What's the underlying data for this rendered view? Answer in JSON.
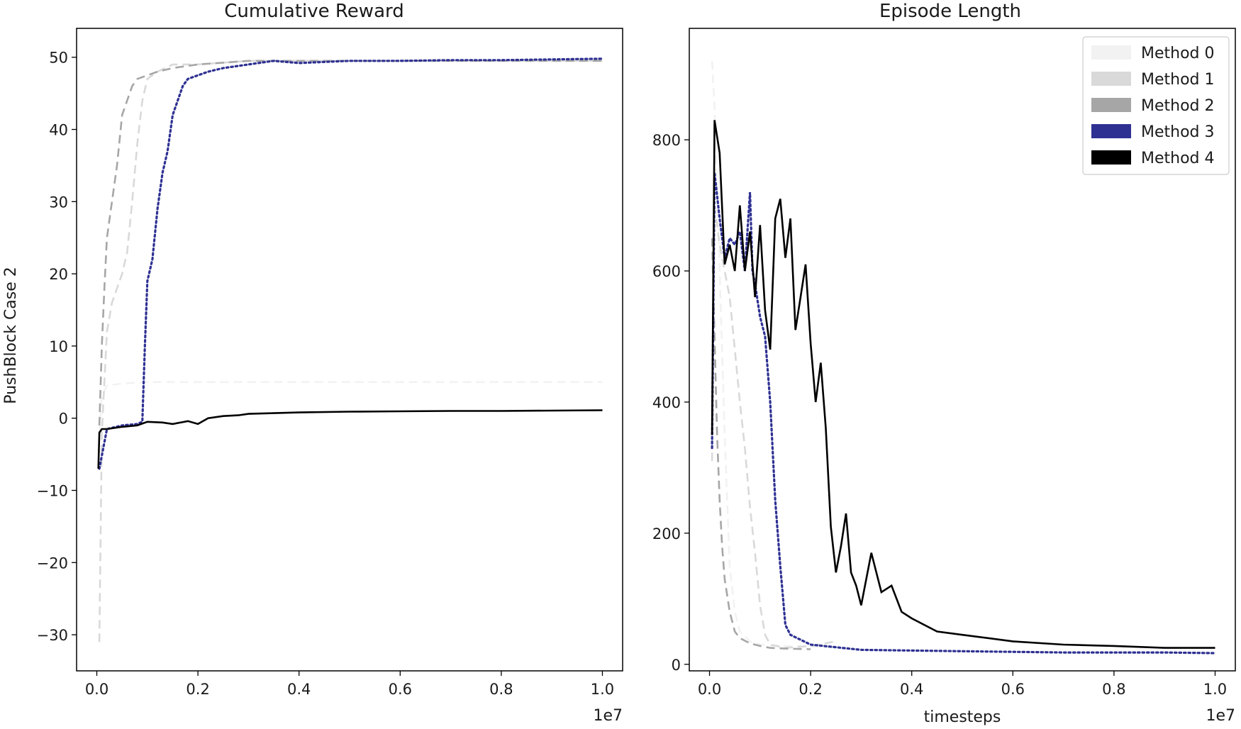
{
  "chart_data": [
    {
      "type": "line",
      "title": "Cumulative Reward",
      "xlabel": "",
      "ylabel": "PushBlock Case 2",
      "x_multiplier_label": "1e7",
      "xlim": [
        -0.04,
        1.04
      ],
      "ylim": [
        -35,
        54
      ],
      "xticks": [
        0.0,
        0.2,
        0.4,
        0.6,
        0.8,
        1.0
      ],
      "xtick_labels": [
        "0.0",
        "0.2",
        "0.4",
        "0.6",
        "0.8",
        "1.0"
      ],
      "yticks": [
        -30,
        -20,
        -10,
        0,
        10,
        20,
        30,
        40,
        50
      ],
      "ytick_labels": [
        "−30",
        "−20",
        "−10",
        "0",
        "10",
        "20",
        "30",
        "40",
        "50"
      ],
      "grid": false,
      "series": [
        {
          "name": "Method 0",
          "color": "#f2f2f2",
          "style": "dashed",
          "x": [
            0.005,
            0.01,
            0.02,
            0.05,
            0.1,
            0.2,
            0.4,
            0.6,
            0.8,
            1.0
          ],
          "y": [
            -2,
            3,
            4.5,
            4.8,
            5,
            5,
            5,
            5,
            5,
            5
          ]
        },
        {
          "name": "Method 1",
          "color": "#d9d9d9",
          "style": "dashed",
          "x": [
            0.005,
            0.01,
            0.015,
            0.02,
            0.03,
            0.04,
            0.05,
            0.06,
            0.07,
            0.08,
            0.09,
            0.1,
            0.12,
            0.15,
            0.2,
            0.3,
            0.4,
            0.6,
            0.8,
            1.0
          ],
          "y": [
            -31,
            -2,
            5,
            12,
            16,
            18,
            20,
            23,
            30,
            38,
            44,
            47,
            48,
            49,
            49,
            49.5,
            49.5,
            49.5,
            49.5,
            49.5
          ]
        },
        {
          "name": "Method 2",
          "color": "#a6a6a6",
          "style": "dashed",
          "x": [
            0.005,
            0.01,
            0.015,
            0.02,
            0.03,
            0.04,
            0.05,
            0.06,
            0.07,
            0.08,
            0.1,
            0.12,
            0.15,
            0.2,
            0.3,
            0.4,
            0.6,
            0.8,
            1.0
          ],
          "y": [
            -1,
            10,
            18,
            25,
            30,
            35,
            42,
            44,
            46,
            47,
            47.5,
            48,
            48.5,
            49,
            49.5,
            49.5,
            49.5,
            49.5,
            49.5
          ]
        },
        {
          "name": "Method 3",
          "color": "#2e3192",
          "style": "dotted",
          "x": [
            0.005,
            0.02,
            0.05,
            0.08,
            0.09,
            0.095,
            0.1,
            0.11,
            0.12,
            0.13,
            0.14,
            0.15,
            0.16,
            0.17,
            0.18,
            0.2,
            0.22,
            0.25,
            0.3,
            0.35,
            0.4,
            0.5,
            0.6,
            0.7,
            0.8,
            0.9,
            1.0
          ],
          "y": [
            -7,
            -1.5,
            -1,
            -0.8,
            -0.5,
            10,
            19,
            22,
            29,
            34,
            37,
            42,
            44,
            46,
            47,
            47.5,
            48,
            48.5,
            49,
            49.5,
            49.2,
            49.5,
            49.5,
            49.6,
            49.6,
            49.7,
            49.8
          ]
        },
        {
          "name": "Method 4",
          "color": "#000000",
          "style": "solid",
          "x": [
            0.003,
            0.005,
            0.01,
            0.02,
            0.05,
            0.08,
            0.1,
            0.13,
            0.15,
            0.18,
            0.2,
            0.22,
            0.25,
            0.28,
            0.3,
            0.35,
            0.4,
            0.5,
            0.6,
            0.7,
            0.8,
            0.9,
            1.0
          ],
          "y": [
            -7,
            -2,
            -1.5,
            -1.5,
            -1.2,
            -1,
            -0.5,
            -0.6,
            -0.8,
            -0.4,
            -0.8,
            0,
            0.3,
            0.4,
            0.6,
            0.7,
            0.8,
            0.9,
            0.95,
            1.0,
            1.0,
            1.05,
            1.1
          ]
        }
      ]
    },
    {
      "type": "line",
      "title": "Episode Length",
      "xlabel": "timesteps",
      "ylabel": "",
      "x_multiplier_label": "1e7",
      "xlim": [
        -0.04,
        1.04
      ],
      "ylim": [
        -10,
        970
      ],
      "xticks": [
        0.0,
        0.2,
        0.4,
        0.6,
        0.8,
        1.0
      ],
      "xtick_labels": [
        "0.0",
        "0.2",
        "0.4",
        "0.6",
        "0.8",
        "1.0"
      ],
      "yticks": [
        0,
        200,
        400,
        600,
        800
      ],
      "ytick_labels": [
        "0",
        "200",
        "400",
        "600",
        "800"
      ],
      "grid": false,
      "legend_position": "top-right",
      "series": [
        {
          "name": "Method 0",
          "color": "#f2f2f2",
          "style": "dashed",
          "x": [
            0.005,
            0.01,
            0.02,
            0.03,
            0.04,
            0.05,
            0.06,
            0.08,
            0.1,
            0.15,
            0.2,
            0.25
          ],
          "y": [
            920,
            850,
            600,
            350,
            150,
            80,
            50,
            35,
            30,
            28,
            27,
            26
          ]
        },
        {
          "name": "Method 1",
          "color": "#d9d9d9",
          "style": "dashed",
          "x": [
            0.005,
            0.01,
            0.02,
            0.03,
            0.04,
            0.05,
            0.06,
            0.07,
            0.08,
            0.09,
            0.1,
            0.11,
            0.12,
            0.15,
            0.2,
            0.25
          ],
          "y": [
            310,
            700,
            640,
            600,
            560,
            480,
            400,
            330,
            240,
            170,
            90,
            45,
            30,
            25,
            28,
            35
          ]
        },
        {
          "name": "Method 2",
          "color": "#a6a6a6",
          "style": "dashed",
          "x": [
            0.005,
            0.01,
            0.015,
            0.02,
            0.025,
            0.03,
            0.04,
            0.05,
            0.06,
            0.08,
            0.1,
            0.12,
            0.15,
            0.2
          ],
          "y": [
            650,
            500,
            350,
            250,
            180,
            130,
            80,
            50,
            40,
            32,
            28,
            25,
            24,
            23
          ]
        },
        {
          "name": "Method 3",
          "color": "#2e3192",
          "style": "dotted",
          "x": [
            0.005,
            0.01,
            0.02,
            0.03,
            0.04,
            0.05,
            0.06,
            0.07,
            0.08,
            0.085,
            0.09,
            0.1,
            0.11,
            0.12,
            0.13,
            0.14,
            0.15,
            0.16,
            0.2,
            0.3,
            0.5,
            0.7,
            0.9,
            1.0
          ],
          "y": [
            330,
            750,
            680,
            620,
            650,
            640,
            660,
            600,
            720,
            600,
            580,
            530,
            500,
            400,
            250,
            150,
            60,
            45,
            30,
            22,
            20,
            18,
            18,
            17
          ]
        },
        {
          "name": "Method 4",
          "color": "#000000",
          "style": "solid",
          "x": [
            0.005,
            0.01,
            0.02,
            0.03,
            0.04,
            0.05,
            0.06,
            0.07,
            0.08,
            0.09,
            0.1,
            0.11,
            0.12,
            0.13,
            0.14,
            0.15,
            0.16,
            0.17,
            0.18,
            0.19,
            0.2,
            0.21,
            0.22,
            0.23,
            0.24,
            0.25,
            0.26,
            0.27,
            0.28,
            0.29,
            0.3,
            0.32,
            0.34,
            0.36,
            0.38,
            0.4,
            0.45,
            0.5,
            0.6,
            0.7,
            0.8,
            0.9,
            1.0
          ],
          "y": [
            350,
            830,
            780,
            610,
            640,
            600,
            700,
            600,
            660,
            560,
            670,
            540,
            480,
            680,
            710,
            620,
            680,
            510,
            560,
            610,
            490,
            400,
            460,
            360,
            210,
            140,
            180,
            230,
            140,
            120,
            90,
            170,
            110,
            120,
            80,
            70,
            50,
            45,
            35,
            30,
            28,
            25,
            25
          ]
        }
      ],
      "legend": [
        "Method 0",
        "Method 1",
        "Method 2",
        "Method 3",
        "Method 4"
      ]
    }
  ]
}
